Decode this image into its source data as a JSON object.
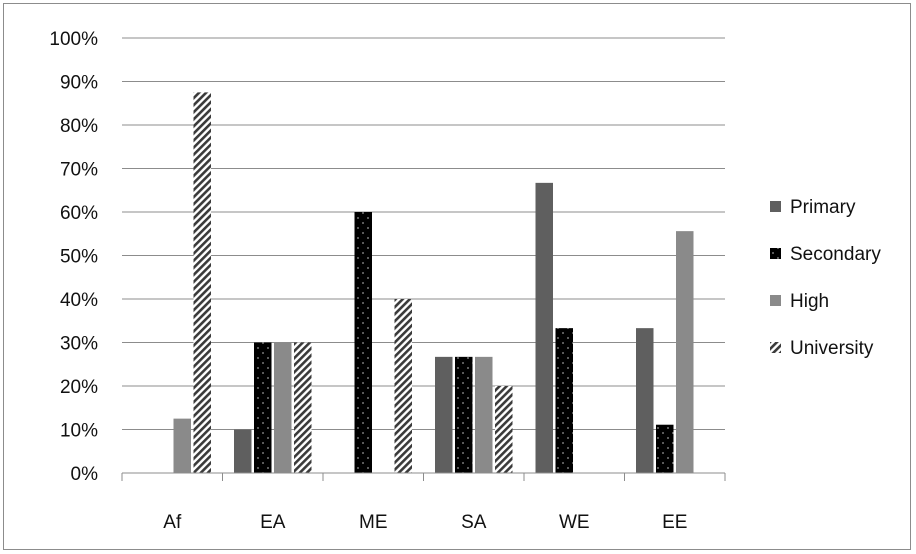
{
  "chart_data": {
    "type": "bar",
    "title": "",
    "xlabel": "",
    "ylabel": "",
    "categories": [
      "Af",
      "EA",
      "ME",
      "SA",
      "WE",
      "EE"
    ],
    "y_ticks": [
      "0%",
      "10%",
      "20%",
      "30%",
      "40%",
      "50%",
      "60%",
      "70%",
      "80%",
      "90%",
      "100%"
    ],
    "ylim": [
      0,
      100
    ],
    "grid": true,
    "legend_position": "right",
    "series": [
      {
        "name": "Primary",
        "pattern": "solid-dark",
        "color": "#5f5f5f",
        "values": [
          0,
          10,
          0,
          26.7,
          66.7,
          33.3
        ]
      },
      {
        "name": "Secondary",
        "pattern": "dotted-black",
        "color": "#000000",
        "values": [
          0,
          30,
          60,
          26.7,
          33.3,
          11.1
        ]
      },
      {
        "name": "High",
        "pattern": "solid-light",
        "color": "#8a8a8a",
        "values": [
          12.5,
          30,
          0,
          26.7,
          0,
          55.6
        ]
      },
      {
        "name": "University",
        "pattern": "diagonal-hatch",
        "color": "#4a4a4a",
        "values": [
          87.5,
          30,
          40,
          20,
          0,
          0
        ]
      }
    ]
  }
}
